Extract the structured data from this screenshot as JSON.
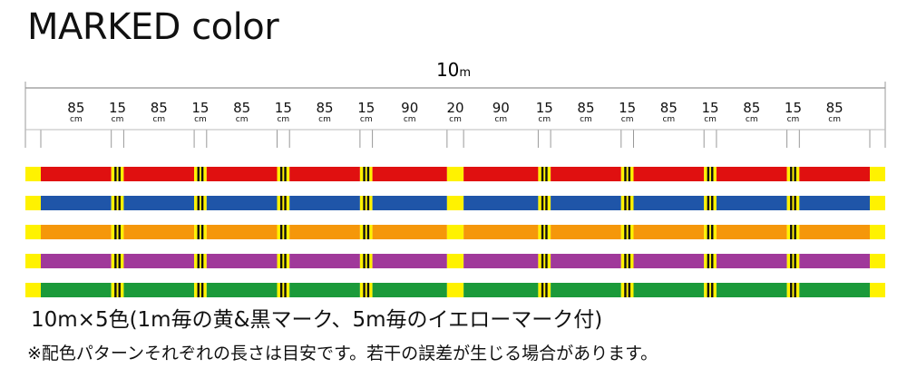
{
  "title": "MARKED color",
  "total_length": {
    "value": "10",
    "unit": "m"
  },
  "segment_unit": "cm",
  "segments": [
    {
      "length": "85",
      "kind": "color"
    },
    {
      "length": "15",
      "kind": "black-mark"
    },
    {
      "length": "85",
      "kind": "color"
    },
    {
      "length": "15",
      "kind": "black-mark"
    },
    {
      "length": "85",
      "kind": "color"
    },
    {
      "length": "15",
      "kind": "black-mark"
    },
    {
      "length": "85",
      "kind": "color"
    },
    {
      "length": "15",
      "kind": "black-mark"
    },
    {
      "length": "90",
      "kind": "color"
    },
    {
      "length": "20",
      "kind": "yellow-mark"
    },
    {
      "length": "90",
      "kind": "color"
    },
    {
      "length": "15",
      "kind": "black-mark"
    },
    {
      "length": "85",
      "kind": "color"
    },
    {
      "length": "15",
      "kind": "black-mark"
    },
    {
      "length": "85",
      "kind": "color"
    },
    {
      "length": "15",
      "kind": "black-mark"
    },
    {
      "length": "85",
      "kind": "color"
    },
    {
      "length": "15",
      "kind": "black-mark"
    },
    {
      "length": "85",
      "kind": "color"
    }
  ],
  "line_colors": [
    "#e01010",
    "#1f55a8",
    "#f5970a",
    "#a0399a",
    "#1b9a3a"
  ],
  "mark_colors": {
    "yellow": "#fff200",
    "black": "#111111"
  },
  "caption": "10m×5色(1m毎の黄&黒マーク、5m毎のイエローマーク付)",
  "note": "※配色パターンそれぞれの長さは目安です。若干の誤差が生じる場合があります。"
}
